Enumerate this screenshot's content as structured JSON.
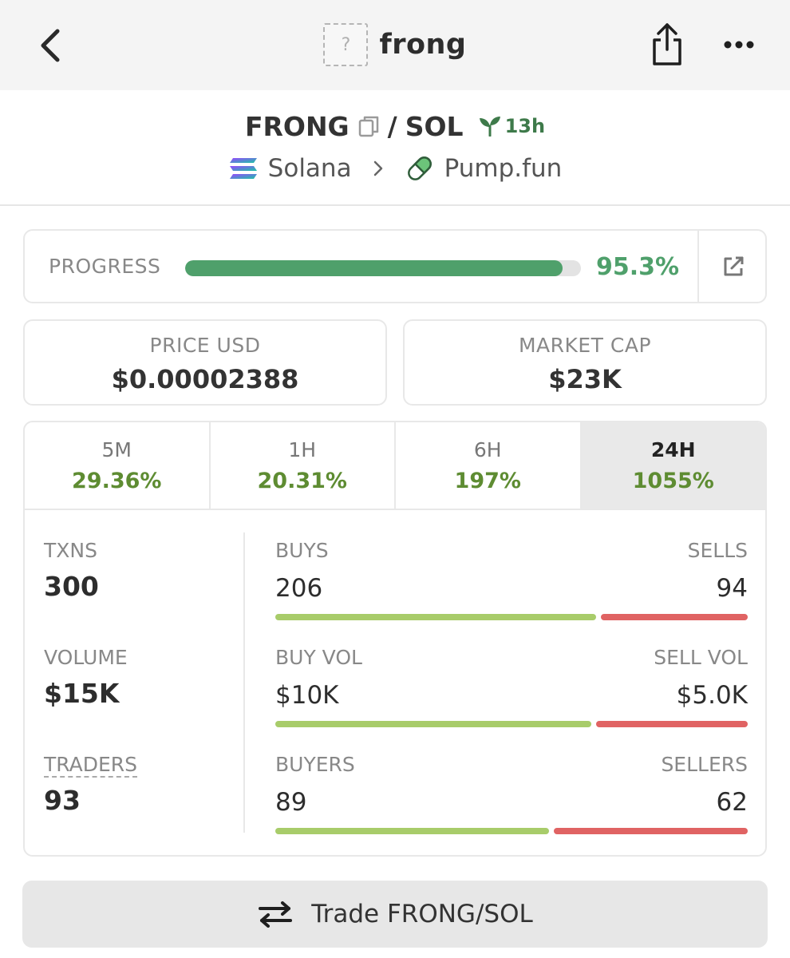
{
  "nav": {
    "title": "frong",
    "token_placeholder": "?",
    "icons": [
      "back-chevron-icon",
      "share-icon",
      "more-icon"
    ]
  },
  "pair": {
    "base": "FRONG",
    "separator": "/",
    "quote": "SOL",
    "age": "13h",
    "chain": "Solana",
    "dex": "Pump.fun"
  },
  "progress": {
    "label": "PROGRESS",
    "value_text": "95.3%",
    "fraction": 0.953,
    "color": "#4fa06b"
  },
  "price": {
    "label": "PRICE USD",
    "value": "$0.00002388"
  },
  "market_cap": {
    "label": "MARKET CAP",
    "value": "$23K"
  },
  "tabs": [
    {
      "label": "5M",
      "value": "29.36%"
    },
    {
      "label": "1H",
      "value": "20.31%"
    },
    {
      "label": "6H",
      "value": "197%"
    },
    {
      "label": "24H",
      "value": "1055%",
      "active": true
    }
  ],
  "metrics": {
    "txns_label": "TXNS",
    "txns_value": "300",
    "volume_label": "VOLUME",
    "volume_value": "$15K",
    "traders_label": "TRADERS",
    "traders_value": "93"
  },
  "rows": {
    "buys_label": "BUYS",
    "sells_label": "SELLS",
    "buys_value": "206",
    "sells_value": "94",
    "buyvol_label": "BUY VOL",
    "sellvol_label": "SELL VOL",
    "buyvol_value": "$10K",
    "sellvol_value": "$5.0K",
    "buyers_label": "BUYERS",
    "sellers_label": "SELLERS",
    "buyers_value": "89",
    "sellers_value": "62"
  },
  "colors": {
    "positive": "#5e8c32",
    "buy_bar": "#a8cc6a",
    "sell_bar": "#e06363"
  },
  "trade_button": {
    "label": "Trade FRONG/SOL"
  }
}
